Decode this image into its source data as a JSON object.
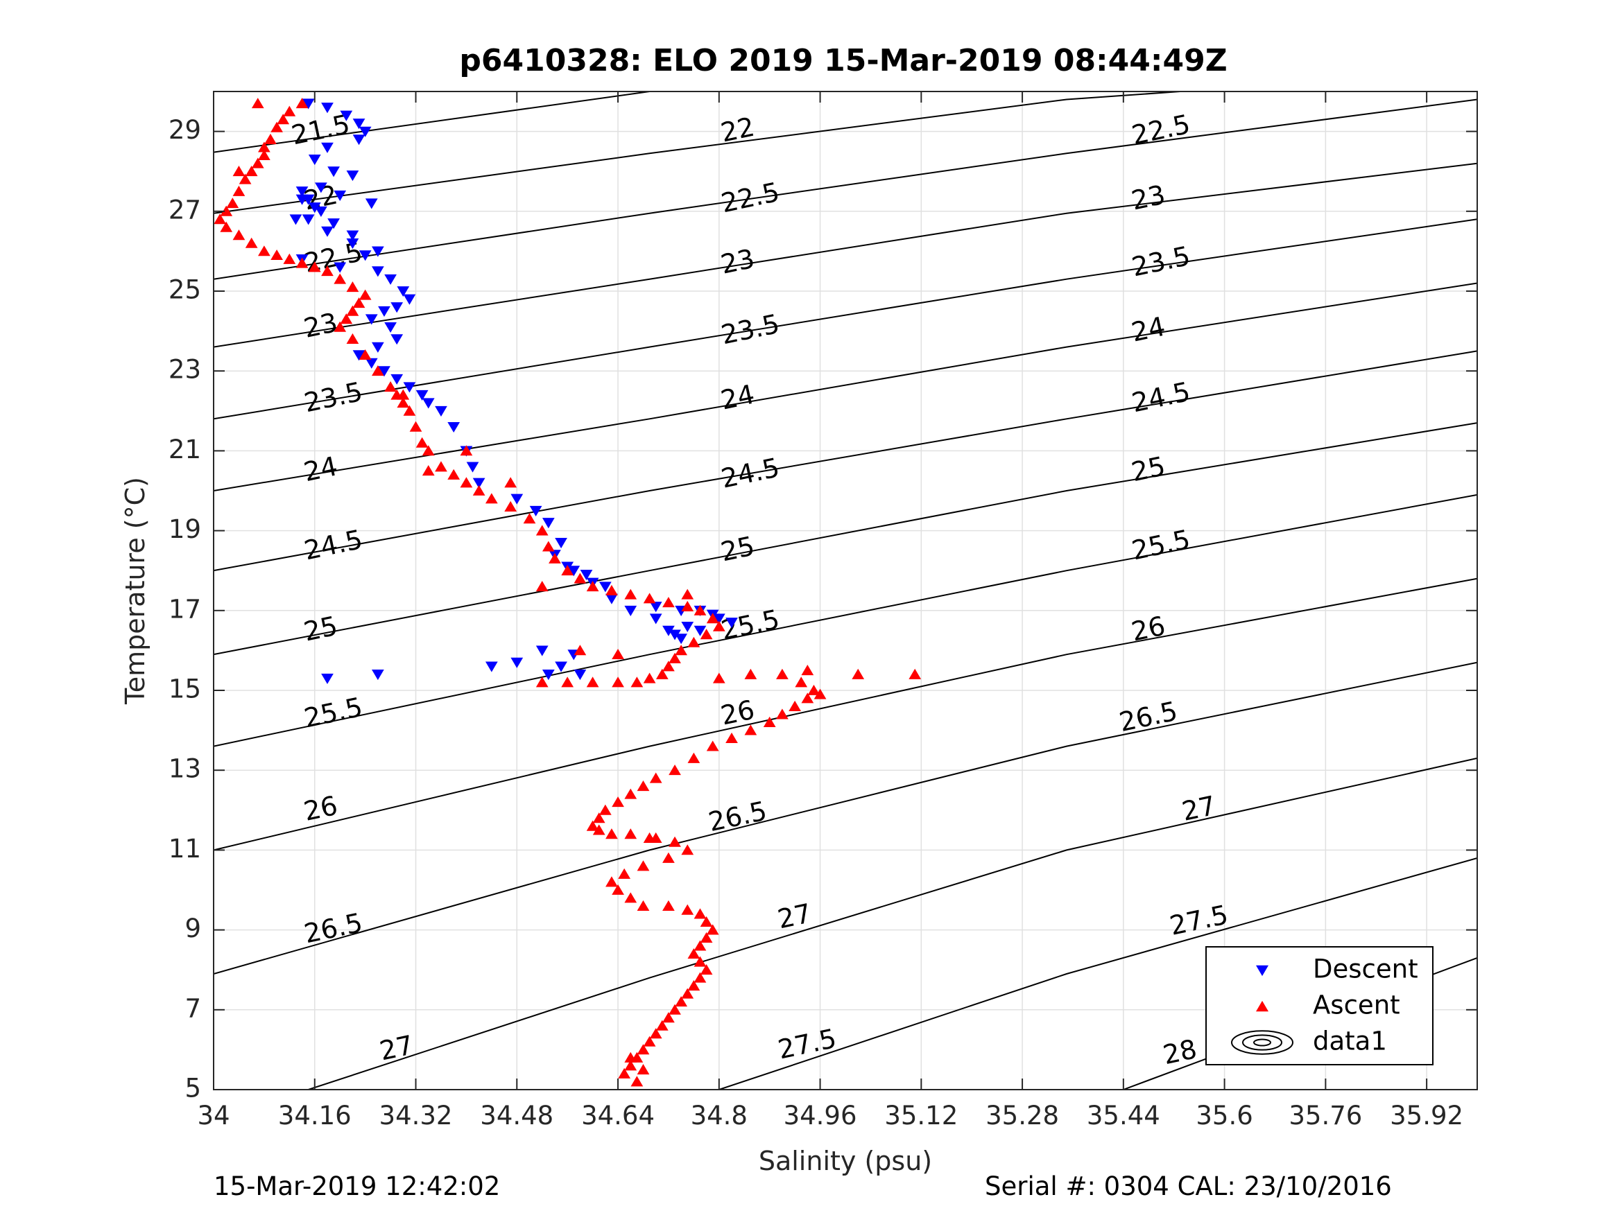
{
  "chart_data": {
    "type": "scatter",
    "title": "p6410328: ELO 2019 15-Mar-2019 08:44:49Z",
    "xlabel": "Salinity (psu)",
    "ylabel": "Temperature (°C)",
    "xlim": [
      34.0,
      36.0
    ],
    "ylim": [
      5.0,
      30.0
    ],
    "xticks": [
      34,
      34.16,
      34.32,
      34.48,
      34.64,
      34.8,
      34.96,
      35.12,
      35.28,
      35.44,
      35.6,
      35.76,
      35.92
    ],
    "xtick_labels": [
      "34",
      "34.16",
      "34.32",
      "34.48",
      "34.64",
      "34.8",
      "34.96",
      "35.12",
      "35.28",
      "35.44",
      "35.6",
      "35.76",
      "35.92"
    ],
    "yticks": [
      5,
      7,
      9,
      11,
      13,
      15,
      17,
      19,
      21,
      23,
      25,
      27,
      29
    ],
    "ytick_labels": [
      "5",
      "7",
      "9",
      "11",
      "13",
      "15",
      "17",
      "19",
      "21",
      "23",
      "25",
      "27",
      "29"
    ],
    "grid": true,
    "legend_position": "bottom-right",
    "colors": {
      "descent": "#0000ff",
      "ascent": "#ff0000",
      "contour": "#000000",
      "grid": "#e0e0e0"
    },
    "contours": {
      "levels": [
        21.5,
        22,
        22.5,
        23,
        23.5,
        24,
        24.5,
        25,
        25.5,
        26,
        26.5,
        27,
        27.5,
        28
      ],
      "level_labels": [
        "21.5",
        "22",
        "22.5",
        "23",
        "23.5",
        "24",
        "24.5",
        "25",
        "25.5",
        "26",
        "26.5",
        "27",
        "27.5",
        "28"
      ],
      "lines": [
        {
          "level": 21.5,
          "points": [
            [
              34.0,
              28.48
            ],
            [
              34.69,
              30.0
            ]
          ]
        },
        {
          "level": 22,
          "points": [
            [
              34.0,
              26.95
            ],
            [
              34.69,
              28.45
            ],
            [
              35.35,
              29.8
            ],
            [
              35.53,
              30.0
            ]
          ]
        },
        {
          "level": 22.5,
          "points": [
            [
              34.0,
              25.3
            ],
            [
              34.69,
              26.95
            ],
            [
              35.35,
              28.45
            ],
            [
              36.0,
              29.8
            ]
          ]
        },
        {
          "level": 23,
          "points": [
            [
              34.0,
              23.6
            ],
            [
              34.69,
              25.3
            ],
            [
              35.35,
              26.95
            ],
            [
              36.0,
              28.2
            ]
          ]
        },
        {
          "level": 23.5,
          "points": [
            [
              34.0,
              21.8
            ],
            [
              34.69,
              23.6
            ],
            [
              35.35,
              25.3
            ],
            [
              36.0,
              26.8
            ]
          ]
        },
        {
          "level": 24,
          "points": [
            [
              34.0,
              20.0
            ],
            [
              34.69,
              21.8
            ],
            [
              35.35,
              23.6
            ],
            [
              36.0,
              25.2
            ]
          ]
        },
        {
          "level": 24.5,
          "points": [
            [
              34.0,
              18.0
            ],
            [
              34.69,
              20.0
            ],
            [
              35.35,
              21.8
            ],
            [
              36.0,
              23.5
            ]
          ]
        },
        {
          "level": 25,
          "points": [
            [
              34.0,
              15.9
            ],
            [
              34.69,
              18.0
            ],
            [
              35.35,
              20.0
            ],
            [
              36.0,
              21.7
            ]
          ]
        },
        {
          "level": 25.5,
          "points": [
            [
              34.0,
              13.6
            ],
            [
              34.69,
              15.9
            ],
            [
              35.35,
              18.0
            ],
            [
              36.0,
              19.9
            ]
          ]
        },
        {
          "level": 26,
          "points": [
            [
              34.0,
              11.0
            ],
            [
              34.69,
              13.6
            ],
            [
              35.35,
              15.9
            ],
            [
              36.0,
              17.8
            ]
          ]
        },
        {
          "level": 26.5,
          "points": [
            [
              34.0,
              7.9
            ],
            [
              34.69,
              11.0
            ],
            [
              35.35,
              13.6
            ],
            [
              36.0,
              15.7
            ]
          ]
        },
        {
          "level": 27,
          "points": [
            [
              34.15,
              5.0
            ],
            [
              34.69,
              7.8
            ],
            [
              35.35,
              11.0
            ],
            [
              36.0,
              13.3
            ]
          ]
        },
        {
          "level": 27.5,
          "points": [
            [
              34.8,
              5.0
            ],
            [
              35.35,
              7.9
            ],
            [
              36.0,
              10.8
            ]
          ]
        },
        {
          "level": 28,
          "points": [
            [
              35.44,
              5.0
            ],
            [
              36.0,
              8.3
            ]
          ]
        }
      ],
      "label_positions": [
        {
          "label": "21.5",
          "x": 34.17,
          "y": 29.0
        },
        {
          "label": "22",
          "x": 34.17,
          "y": 27.3
        },
        {
          "label": "22.5",
          "x": 34.19,
          "y": 25.8
        },
        {
          "label": "23",
          "x": 34.17,
          "y": 24.1
        },
        {
          "label": "23.5",
          "x": 34.19,
          "y": 22.3
        },
        {
          "label": "24",
          "x": 34.17,
          "y": 20.5
        },
        {
          "label": "24.5",
          "x": 34.19,
          "y": 18.6
        },
        {
          "label": "25",
          "x": 34.17,
          "y": 16.5
        },
        {
          "label": "25.5",
          "x": 34.19,
          "y": 14.4
        },
        {
          "label": "26",
          "x": 34.17,
          "y": 12.0
        },
        {
          "label": "26.5",
          "x": 34.19,
          "y": 9.0
        },
        {
          "label": "27",
          "x": 34.29,
          "y": 6.0
        },
        {
          "label": "22",
          "x": 34.83,
          "y": 29.0
        },
        {
          "label": "22.5",
          "x": 34.85,
          "y": 27.3
        },
        {
          "label": "23",
          "x": 34.83,
          "y": 25.7
        },
        {
          "label": "23.5",
          "x": 34.85,
          "y": 24.0
        },
        {
          "label": "24",
          "x": 34.83,
          "y": 22.3
        },
        {
          "label": "24.5",
          "x": 34.85,
          "y": 20.4
        },
        {
          "label": "25",
          "x": 34.83,
          "y": 18.5
        },
        {
          "label": "25.5",
          "x": 34.85,
          "y": 16.6
        },
        {
          "label": "26",
          "x": 34.83,
          "y": 14.4
        },
        {
          "label": "26.5",
          "x": 34.83,
          "y": 11.8
        },
        {
          "label": "27",
          "x": 34.92,
          "y": 9.3
        },
        {
          "label": "27.5",
          "x": 34.94,
          "y": 6.1
        },
        {
          "label": "22.5",
          "x": 35.5,
          "y": 29.0
        },
        {
          "label": "23",
          "x": 35.48,
          "y": 27.3
        },
        {
          "label": "23.5",
          "x": 35.5,
          "y": 25.7
        },
        {
          "label": "24",
          "x": 35.48,
          "y": 24.0
        },
        {
          "label": "24.5",
          "x": 35.5,
          "y": 22.3
        },
        {
          "label": "25",
          "x": 35.48,
          "y": 20.5
        },
        {
          "label": "25.5",
          "x": 35.5,
          "y": 18.6
        },
        {
          "label": "26",
          "x": 35.48,
          "y": 16.5
        },
        {
          "label": "26.5",
          "x": 35.48,
          "y": 14.3
        },
        {
          "label": "27",
          "x": 35.56,
          "y": 12.0
        },
        {
          "label": "27.5",
          "x": 35.56,
          "y": 9.2
        },
        {
          "label": "28",
          "x": 35.53,
          "y": 5.9
        }
      ]
    },
    "series": [
      {
        "name": "Descent",
        "marker": "triangle-down",
        "color": "#0000ff",
        "x": [
          34.15,
          34.18,
          34.21,
          34.23,
          34.24,
          34.23,
          34.18,
          34.16,
          34.19,
          34.22,
          34.17,
          34.14,
          34.2,
          34.25,
          34.17,
          34.15,
          34.18,
          34.22,
          34.26,
          34.14,
          34.13,
          34.16,
          34.14,
          34.15,
          34.19,
          34.22,
          34.24,
          34.2,
          34.26,
          34.28,
          34.3,
          34.31,
          34.29,
          34.27,
          34.25,
          34.28,
          34.29,
          34.26,
          34.23,
          34.25,
          34.27,
          34.29,
          34.31,
          34.33,
          34.34,
          34.36,
          34.38,
          34.4,
          34.41,
          34.42,
          34.48,
          34.51,
          34.53,
          34.55,
          34.54,
          34.56,
          34.57,
          34.59,
          34.6,
          34.62,
          34.63,
          34.66,
          34.7,
          34.74,
          34.77,
          34.79,
          34.8,
          34.82,
          34.77,
          34.74,
          34.72,
          34.7,
          34.75,
          34.73,
          34.18,
          34.26,
          34.44,
          34.48,
          34.53,
          34.55,
          34.57,
          34.52,
          34.58
        ],
        "y": [
          29.7,
          29.6,
          29.4,
          29.2,
          29.0,
          28.8,
          28.6,
          28.3,
          28.0,
          27.9,
          27.6,
          27.3,
          27.4,
          27.2,
          27.0,
          26.8,
          26.5,
          26.4,
          26.0,
          25.8,
          26.8,
          27.1,
          27.5,
          27.3,
          26.7,
          26.2,
          25.9,
          25.6,
          25.5,
          25.3,
          25.0,
          24.8,
          24.6,
          24.5,
          24.3,
          24.1,
          23.8,
          23.6,
          23.4,
          23.2,
          23.0,
          22.8,
          22.6,
          22.4,
          22.2,
          22.0,
          21.6,
          21.0,
          20.6,
          20.2,
          19.8,
          19.5,
          19.2,
          18.7,
          18.4,
          18.1,
          18.0,
          17.9,
          17.7,
          17.6,
          17.3,
          17.0,
          17.1,
          17.0,
          17.0,
          16.9,
          16.8,
          16.7,
          16.5,
          16.3,
          16.5,
          16.8,
          16.6,
          16.4,
          15.3,
          15.4,
          15.6,
          15.7,
          15.4,
          15.6,
          15.9,
          16.0,
          15.4
        ]
      },
      {
        "name": "Ascent",
        "marker": "triangle-up",
        "color": "#ff0000",
        "x": [
          34.14,
          34.12,
          34.11,
          34.1,
          34.09,
          34.08,
          34.08,
          34.07,
          34.06,
          34.05,
          34.04,
          34.03,
          34.02,
          34.01,
          34.02,
          34.04,
          34.06,
          34.08,
          34.1,
          34.12,
          34.14,
          34.16,
          34.18,
          34.2,
          34.22,
          34.24,
          34.23,
          34.22,
          34.21,
          34.2,
          34.22,
          34.24,
          34.26,
          34.28,
          34.29,
          34.3,
          34.31,
          34.32,
          34.33,
          34.34,
          34.36,
          34.38,
          34.4,
          34.42,
          34.44,
          34.47,
          34.5,
          34.52,
          34.53,
          34.54,
          34.56,
          34.58,
          34.6,
          34.63,
          34.66,
          34.69,
          34.72,
          34.75,
          34.77,
          34.79,
          34.8,
          34.78,
          34.76,
          34.74,
          34.73,
          34.72,
          34.71,
          34.69,
          34.67,
          34.64,
          34.6,
          34.56,
          34.52,
          34.8,
          34.85,
          34.9,
          34.94,
          34.93,
          34.95,
          34.96,
          34.94,
          34.92,
          34.9,
          34.88,
          34.85,
          34.82,
          34.79,
          34.76,
          34.73,
          34.7,
          34.68,
          34.66,
          34.64,
          34.62,
          34.61,
          34.6,
          34.61,
          34.63,
          34.66,
          34.7,
          34.73,
          34.75,
          34.72,
          34.68,
          34.65,
          34.63,
          34.64,
          34.66,
          34.68,
          34.72,
          34.75,
          34.77,
          34.78,
          34.79,
          34.78,
          34.77,
          34.76,
          34.77,
          34.78,
          34.77,
          34.76,
          34.75,
          34.74,
          34.73,
          34.72,
          34.71,
          34.7,
          34.69,
          34.68,
          34.67,
          34.66,
          34.65,
          34.67,
          34.68,
          34.66,
          34.07,
          34.04,
          34.3,
          35.02,
          35.11,
          34.58,
          34.64,
          34.75,
          34.52,
          34.34,
          34.4,
          34.47,
          34.69
        ],
        "y": [
          29.7,
          29.5,
          29.3,
          29.1,
          28.8,
          28.6,
          28.4,
          28.2,
          28.0,
          27.8,
          27.5,
          27.2,
          27.0,
          26.8,
          26.6,
          26.4,
          26.2,
          26.0,
          25.9,
          25.8,
          25.7,
          25.6,
          25.5,
          25.3,
          25.1,
          24.9,
          24.7,
          24.5,
          24.3,
          24.1,
          23.8,
          23.4,
          23.0,
          22.6,
          22.4,
          22.2,
          22.0,
          21.6,
          21.2,
          21.0,
          20.6,
          20.4,
          20.2,
          20.0,
          19.8,
          19.6,
          19.3,
          19.0,
          18.6,
          18.3,
          18.0,
          17.8,
          17.6,
          17.5,
          17.4,
          17.3,
          17.2,
          17.1,
          17.0,
          16.8,
          16.6,
          16.4,
          16.2,
          16.0,
          15.8,
          15.6,
          15.4,
          15.3,
          15.2,
          15.2,
          15.2,
          15.2,
          15.2,
          15.3,
          15.4,
          15.4,
          15.5,
          15.2,
          15.0,
          14.9,
          14.8,
          14.6,
          14.4,
          14.2,
          14.0,
          13.8,
          13.6,
          13.3,
          13.0,
          12.8,
          12.6,
          12.4,
          12.2,
          12.0,
          11.8,
          11.6,
          11.5,
          11.4,
          11.4,
          11.3,
          11.2,
          11.0,
          10.8,
          10.6,
          10.4,
          10.2,
          10.0,
          9.8,
          9.6,
          9.6,
          9.5,
          9.4,
          9.2,
          9.0,
          8.8,
          8.6,
          8.4,
          8.2,
          8.0,
          7.8,
          7.6,
          7.4,
          7.2,
          7.0,
          6.8,
          6.6,
          6.4,
          6.2,
          6.0,
          5.8,
          5.6,
          5.4,
          5.2,
          5.5,
          5.8,
          29.7,
          28.0,
          22.4,
          15.4,
          15.4,
          16.0,
          15.9,
          17.4,
          17.6,
          20.5,
          21.0,
          20.2,
          11.3
        ]
      }
    ],
    "legend": [
      {
        "label": "Descent",
        "marker": "triangle-down",
        "color": "#0000ff"
      },
      {
        "label": "Ascent",
        "marker": "triangle-up",
        "color": "#ff0000"
      },
      {
        "label": "data1",
        "marker": "contour",
        "color": "#000000"
      }
    ]
  },
  "footer": {
    "left": "15-Mar-2019 12:42:02",
    "right": "Serial #: 0304  CAL: 23/10/2016"
  }
}
